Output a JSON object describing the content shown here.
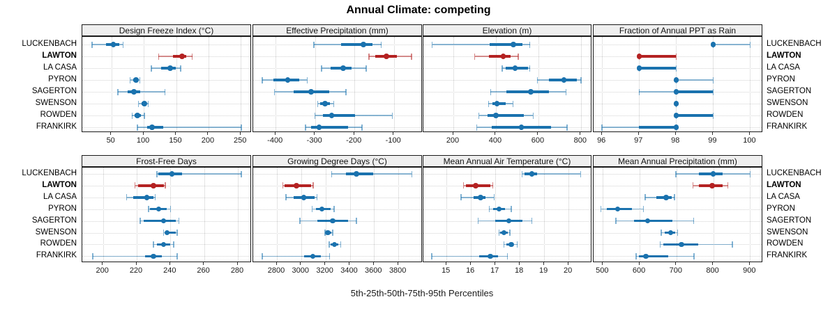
{
  "title": "Annual Climate: competing",
  "xlabel": "5th-25th-50th-75th-95th Percentiles",
  "colors": {
    "series_normal": "#1a72ae",
    "series_highlight": "#b42222",
    "strip_background": "#efefef",
    "panel_border": "#191919",
    "gridline": "#c9c9c9"
  },
  "locations": [
    {
      "name": "LUCKENBACH",
      "bold": false
    },
    {
      "name": "LAWTON",
      "bold": true
    },
    {
      "name": "LA CASA",
      "bold": false
    },
    {
      "name": "PYRON",
      "bold": false
    },
    {
      "name": "SAGERTON",
      "bold": false
    },
    {
      "name": "SWENSON",
      "bold": false
    },
    {
      "name": "ROWDEN",
      "bold": false
    },
    {
      "name": "FRANKIRK",
      "bold": false
    }
  ],
  "highlight_location": "LAWTON",
  "chart_data": {
    "type": "dotplot-percentile-trellis",
    "percentile_levels": [
      5,
      25,
      50,
      75,
      95
    ],
    "legend_note": "thin line = 5th-95th, thick line = 25th-75th, dot = median",
    "grid": "dotted",
    "rows": [
      "LUCKENBACH",
      "LAWTON",
      "LA CASA",
      "PYRON",
      "SAGERTON",
      "SWENSON",
      "ROWDEN",
      "FRANKIRK"
    ],
    "panels": [
      {
        "title": "Design Freeze Index (°C)",
        "band": 0,
        "col": 0,
        "xlim": [
          5,
          267
        ],
        "ticks": [
          50,
          100,
          150,
          200,
          250
        ],
        "values": {
          "LUCKENBACH": [
            20,
            42,
            53,
            62,
            68
          ],
          "LAWTON": [
            123,
            145,
            159,
            166,
            175
          ],
          "LA CASA": [
            112,
            127,
            141,
            150,
            157
          ],
          "PYRON": [
            79,
            84,
            88,
            91,
            94
          ],
          "SAGERTON": [
            60,
            75,
            85,
            95,
            133
          ],
          "SWENSON": [
            92,
            97,
            101,
            104,
            107
          ],
          "ROWDEN": [
            82,
            86,
            90,
            96,
            101
          ],
          "FRANKIRK": [
            90,
            105,
            113,
            130,
            251
          ]
        }
      },
      {
        "title": "Effective Precipitation (mm)",
        "band": 0,
        "col": 1,
        "xlim": [
          -457,
          -27
        ],
        "ticks": [
          -400,
          -300,
          -200,
          -100
        ],
        "values": {
          "LUCKENBACH": [
            -303,
            -235,
            -177,
            -155,
            -132
          ],
          "LAWTON": [
            -163,
            -148,
            -119,
            -92,
            -55
          ],
          "LA CASA": [
            -284,
            -260,
            -229,
            -207,
            -170
          ],
          "PYRON": [
            -434,
            -405,
            -369,
            -341,
            -320
          ],
          "SAGERTON": [
            -403,
            -355,
            -310,
            -264,
            -222
          ],
          "SWENSON": [
            -293,
            -287,
            -275,
            -263,
            -253
          ],
          "ROWDEN": [
            -300,
            -281,
            -258,
            -198,
            -104
          ],
          "FRANKIRK": [
            -324,
            -311,
            -290,
            -216,
            -181
          ]
        }
      },
      {
        "title": "Elevation (m)",
        "band": 0,
        "col": 2,
        "xlim": [
          59,
          853
        ],
        "ticks": [
          200,
          400,
          600,
          800
        ],
        "values": {
          "LUCKENBACH": [
            100,
            372,
            483,
            525,
            560
          ],
          "LAWTON": [
            300,
            366,
            435,
            470,
            505
          ],
          "LA CASA": [
            430,
            445,
            490,
            550,
            560
          ],
          "PYRON": [
            595,
            650,
            720,
            780,
            800
          ],
          "SAGERTON": [
            375,
            448,
            565,
            650,
            730
          ],
          "SWENSON": [
            365,
            385,
            405,
            445,
            480
          ],
          "ROWDEN": [
            320,
            362,
            400,
            530,
            575
          ],
          "FRANKIRK": [
            310,
            380,
            520,
            660,
            735
          ]
        }
      },
      {
        "title": "Fraction of Annual PPT as Rain",
        "band": 0,
        "col": 3,
        "xlim": [
          95.77,
          100.35
        ],
        "ticks": [
          96,
          97,
          98,
          99,
          100
        ],
        "values": {
          "LUCKENBACH": [
            99,
            99,
            99,
            99,
            100
          ],
          "LAWTON": [
            97,
            97,
            97,
            98,
            98
          ],
          "LA CASA": [
            97,
            97,
            97,
            98,
            98
          ],
          "PYRON": [
            98,
            98,
            98,
            98,
            99
          ],
          "SAGERTON": [
            97,
            98,
            98,
            99,
            99
          ],
          "SWENSON": [
            98,
            98,
            98,
            98,
            98
          ],
          "ROWDEN": [
            98,
            98,
            98,
            99,
            99
          ],
          "FRANKIRK": [
            96,
            97,
            98,
            98,
            98
          ]
        }
      },
      {
        "title": "Frost-Free Days",
        "band": 1,
        "col": 0,
        "xlim": [
          187.7,
          288.3
        ],
        "ticks": [
          200,
          220,
          240,
          260,
          280
        ],
        "values": {
          "LUCKENBACH": [
            232,
            233,
            241,
            247,
            282
          ],
          "LAWTON": [
            219,
            221,
            230,
            236,
            237
          ],
          "LA CASA": [
            214,
            218,
            226,
            230,
            231
          ],
          "PYRON": [
            227,
            228,
            233,
            238,
            240
          ],
          "SAGERTON": [
            222,
            224,
            236,
            243,
            245
          ],
          "SWENSON": [
            236,
            237,
            238,
            243,
            244
          ],
          "ROWDEN": [
            230,
            232,
            236,
            240,
            242
          ],
          "FRANKIRK": [
            194,
            225,
            230,
            235,
            244
          ]
        }
      },
      {
        "title": "Growing Degree Days (°C)",
        "band": 1,
        "col": 1,
        "xlim": [
          2605,
          4000
        ],
        "ticks": [
          2800,
          3000,
          3200,
          3400,
          3600,
          3800
        ],
        "values": {
          "LUCKENBACH": [
            3250,
            3370,
            3455,
            3595,
            3910
          ],
          "LAWTON": [
            2850,
            2865,
            2960,
            3080,
            3100
          ],
          "LA CASA": [
            2875,
            2940,
            3020,
            3110,
            3130
          ],
          "PYRON": [
            3090,
            3120,
            3170,
            3245,
            3270
          ],
          "SAGERTON": [
            2990,
            3130,
            3260,
            3385,
            3455
          ],
          "SWENSON": [
            3195,
            3205,
            3220,
            3250,
            3260
          ],
          "ROWDEN": [
            3230,
            3240,
            3273,
            3307,
            3325
          ],
          "FRANKIRK": [
            2680,
            3025,
            3095,
            3160,
            3235
          ]
        }
      },
      {
        "title": "Mean Annual Air Temperature (°C)",
        "band": 1,
        "col": 2,
        "xlim": [
          14.05,
          20.97
        ],
        "ticks": [
          15,
          16,
          17,
          18,
          19,
          20
        ],
        "values": {
          "LUCKENBACH": [
            18.1,
            18.2,
            18.5,
            18.7,
            20.5
          ],
          "LAWTON": [
            15.7,
            15.8,
            16.2,
            16.8,
            16.9
          ],
          "LA CASA": [
            15.6,
            16.1,
            16.4,
            16.6,
            16.95
          ],
          "PYRON": [
            16.75,
            16.9,
            17.15,
            17.4,
            17.65
          ],
          "SAGERTON": [
            16.3,
            17.0,
            17.55,
            18.1,
            18.5
          ],
          "SWENSON": [
            17.15,
            17.2,
            17.35,
            17.5,
            17.6
          ],
          "ROWDEN": [
            17.35,
            17.45,
            17.65,
            17.75,
            17.9
          ],
          "FRANKIRK": [
            14.4,
            16.35,
            16.8,
            17.1,
            17.5
          ]
        }
      },
      {
        "title": "Mean Annual Precipitation (mm)",
        "band": 1,
        "col": 3,
        "xlim": [
          474.8,
          935.4
        ],
        "ticks": [
          500,
          600,
          700,
          800,
          900
        ],
        "values": {
          "LUCKENBACH": [
            698,
            760,
            800,
            825,
            900
          ],
          "LAWTON": [
            745,
            760,
            797,
            825,
            840
          ],
          "LA CASA": [
            615,
            645,
            672,
            688,
            695
          ],
          "PYRON": [
            495,
            510,
            540,
            580,
            610
          ],
          "SAGERTON": [
            535,
            585,
            622,
            690,
            747
          ],
          "SWENSON": [
            659,
            668,
            684,
            697,
            703
          ],
          "ROWDEN": [
            656,
            665,
            714,
            760,
            852
          ],
          "FRANKIRK": [
            590,
            598,
            617,
            677,
            748
          ]
        }
      }
    ]
  }
}
